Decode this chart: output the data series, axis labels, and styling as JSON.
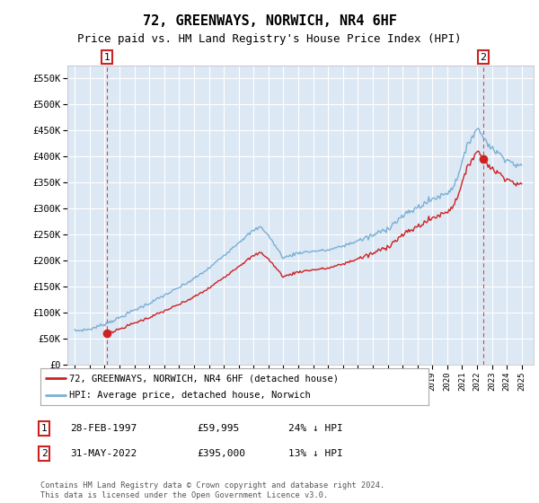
{
  "title": "72, GREENWAYS, NORWICH, NR4 6HF",
  "subtitle": "Price paid vs. HM Land Registry's House Price Index (HPI)",
  "ylim": [
    0,
    575000
  ],
  "yticks": [
    0,
    50000,
    100000,
    150000,
    200000,
    250000,
    300000,
    350000,
    400000,
    450000,
    500000,
    550000
  ],
  "ytick_labels": [
    "£0",
    "£50K",
    "£100K",
    "£150K",
    "£200K",
    "£250K",
    "£300K",
    "£350K",
    "£400K",
    "£450K",
    "£500K",
    "£550K"
  ],
  "hpi_color": "#7ab0d4",
  "price_color": "#cc2222",
  "marker1_x": 1997.16,
  "marker1_y": 59995,
  "marker2_x": 2022.42,
  "marker2_y": 395000,
  "marker1_label": "1",
  "marker2_label": "2",
  "legend_line1": "72, GREENWAYS, NORWICH, NR4 6HF (detached house)",
  "legend_line2": "HPI: Average price, detached house, Norwich",
  "table_row1": [
    "1",
    "28-FEB-1997",
    "£59,995",
    "24% ↓ HPI"
  ],
  "table_row2": [
    "2",
    "31-MAY-2022",
    "£395,000",
    "13% ↓ HPI"
  ],
  "footer": "Contains HM Land Registry data © Crown copyright and database right 2024.\nThis data is licensed under the Open Government Licence v3.0.",
  "plot_bg": "#dde8f5",
  "grid_color": "#ffffff",
  "title_fontsize": 11,
  "subtitle_fontsize": 9,
  "xlim_left": 1994.5,
  "xlim_right": 2025.8,
  "hpi_key_years": [
    1995,
    1996,
    1997,
    1998,
    1999,
    2000,
    2001,
    2002,
    2003,
    2004,
    2005,
    2006,
    2007,
    2007.5,
    2008,
    2009,
    2009.5,
    2010,
    2011,
    2012,
    2013,
    2014,
    2015,
    2016,
    2017,
    2018,
    2019,
    2020,
    2020.5,
    2021,
    2021.5,
    2022,
    2022.5,
    2023,
    2024,
    2024.5,
    2025
  ],
  "hpi_key_vals": [
    65000,
    68000,
    78000,
    90000,
    105000,
    118000,
    133000,
    148000,
    165000,
    185000,
    210000,
    235000,
    258000,
    265000,
    248000,
    205000,
    210000,
    215000,
    218000,
    220000,
    228000,
    238000,
    248000,
    262000,
    285000,
    302000,
    318000,
    330000,
    345000,
    390000,
    430000,
    455000,
    435000,
    415000,
    395000,
    385000,
    380000
  ]
}
